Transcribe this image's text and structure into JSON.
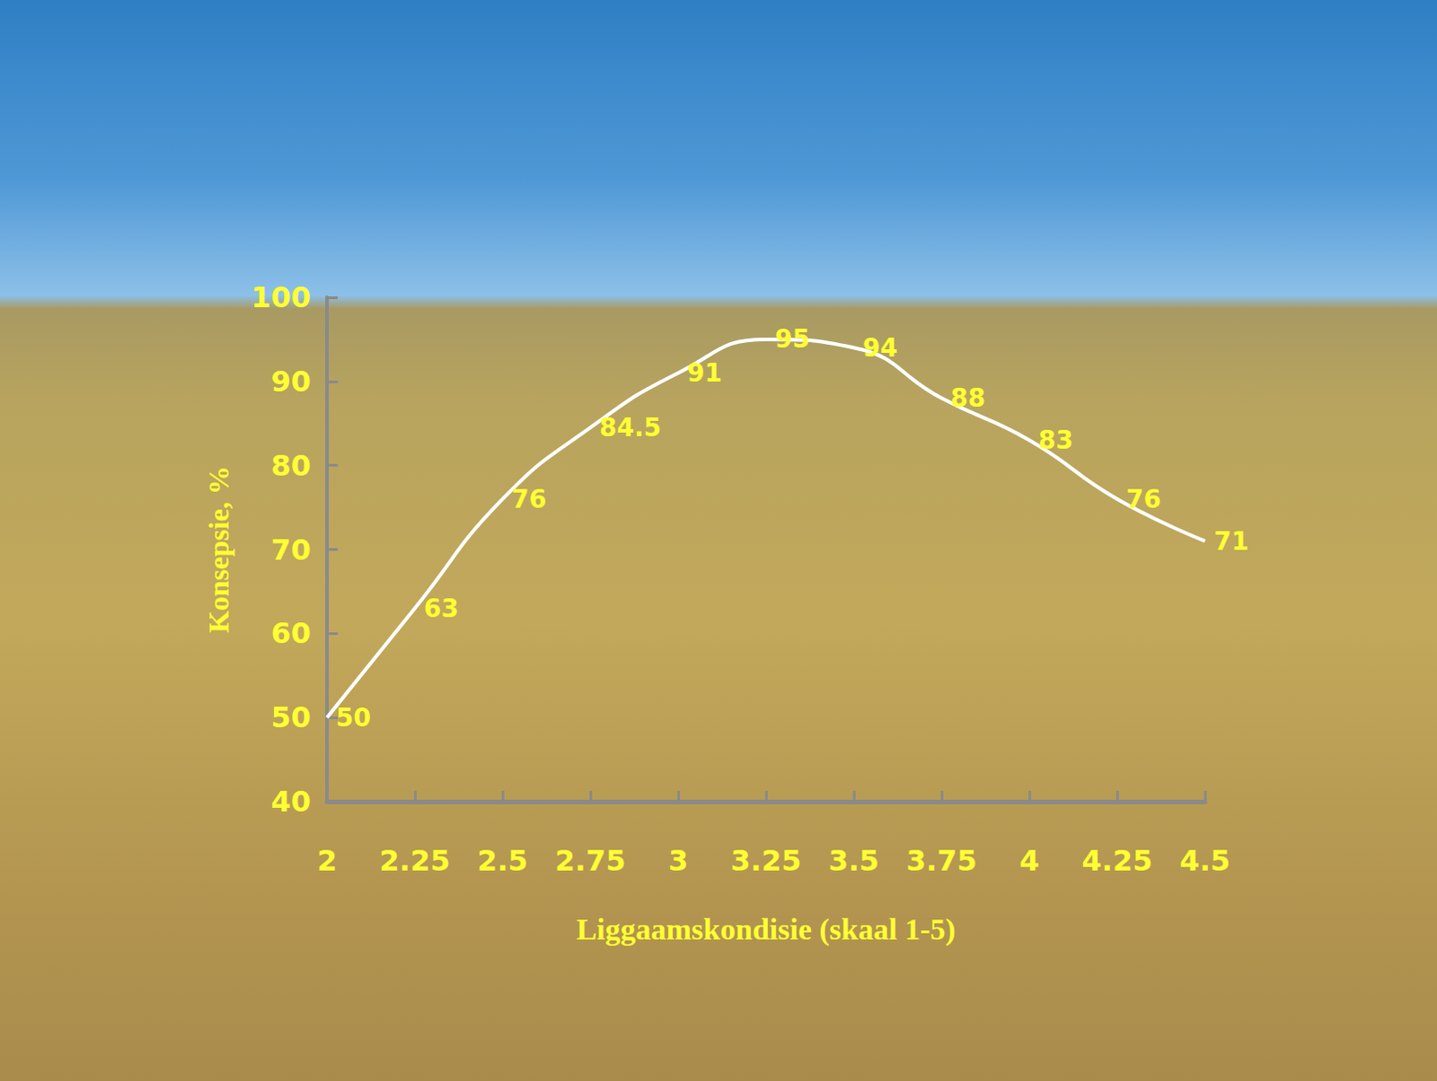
{
  "chart_data": {
    "type": "line",
    "xlabel": "Liggaamskondisie (skaal 1-5)",
    "ylabel": "Konsepsie, %",
    "x": [
      2,
      2.25,
      2.5,
      2.75,
      3,
      3.25,
      3.5,
      3.75,
      4,
      4.25,
      4.5
    ],
    "values": [
      50,
      63,
      76,
      84.5,
      91,
      95,
      94,
      88,
      83,
      76,
      71
    ],
    "color": "#ffffff",
    "xlim": [
      2,
      4.5
    ],
    "xticks": [
      2,
      2.25,
      2.5,
      2.75,
      3,
      3.25,
      3.5,
      3.75,
      4,
      4.25,
      4.5
    ],
    "ylim": [
      40,
      100
    ],
    "yticks": [
      40,
      50,
      60,
      70,
      80,
      90,
      100
    ],
    "grid": false,
    "data_labels": true
  }
}
